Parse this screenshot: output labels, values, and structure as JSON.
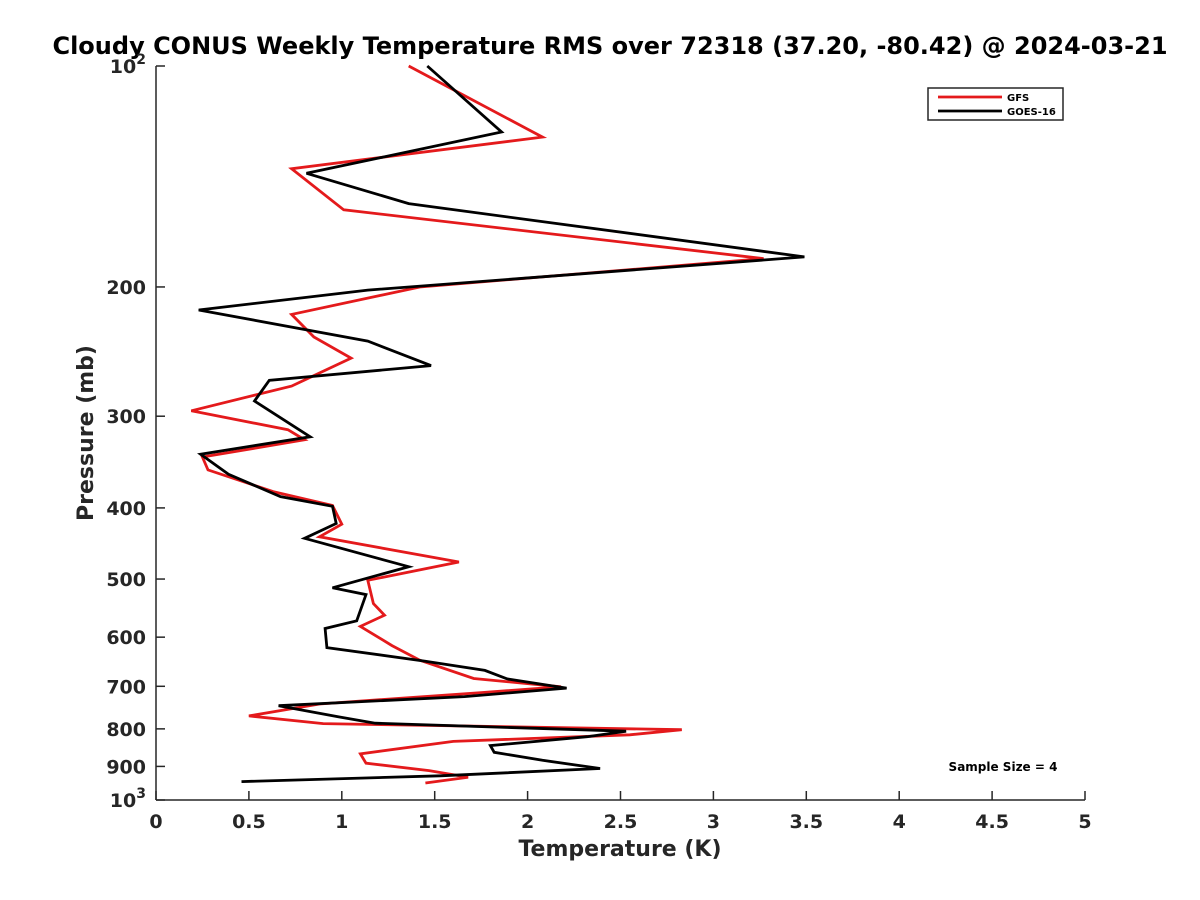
{
  "chart_data": {
    "type": "line",
    "title": "Cloudy CONUS Weekly Temperature RMS over 72318 (37.20, -80.42) @ 2024-03-21",
    "xlabel": "Temperature (K)",
    "ylabel": "Pressure (mb)",
    "xlim": [
      0,
      5
    ],
    "ylim": [
      100,
      1000
    ],
    "yscale": "log",
    "y_reversed": true,
    "x_ticks": [
      "0",
      "0.5",
      "1",
      "1.5",
      "2",
      "2.5",
      "3",
      "3.5",
      "4",
      "4.5",
      "5"
    ],
    "y_ticks": [
      {
        "value": 100,
        "label": "10",
        "exp": "2"
      },
      {
        "value": 200,
        "label": "200",
        "exp": ""
      },
      {
        "value": 300,
        "label": "300",
        "exp": ""
      },
      {
        "value": 400,
        "label": "400",
        "exp": ""
      },
      {
        "value": 500,
        "label": "500",
        "exp": ""
      },
      {
        "value": 600,
        "label": "600",
        "exp": ""
      },
      {
        "value": 700,
        "label": "700",
        "exp": ""
      },
      {
        "value": 800,
        "label": "800",
        "exp": ""
      },
      {
        "value": 900,
        "label": "900",
        "exp": ""
      },
      {
        "value": 1000,
        "label": "10",
        "exp": "3"
      }
    ],
    "grid": false,
    "legend_position": "top-right",
    "annotation": "Sample Size = 4",
    "series": [
      {
        "name": "GFS",
        "color": "#e41a1c",
        "points": [
          [
            1.36,
            100
          ],
          [
            2.08,
            125
          ],
          [
            0.73,
            138
          ],
          [
            1.01,
            157
          ],
          [
            3.27,
            183
          ],
          [
            1.42,
            200
          ],
          [
            0.73,
            218
          ],
          [
            0.85,
            234
          ],
          [
            1.05,
            250
          ],
          [
            0.73,
            273
          ],
          [
            0.19,
            295
          ],
          [
            0.71,
            313
          ],
          [
            0.8,
            323
          ],
          [
            0.25,
            341
          ],
          [
            0.28,
            355
          ],
          [
            0.63,
            380
          ],
          [
            0.95,
            397
          ],
          [
            1.0,
            421
          ],
          [
            0.88,
            438
          ],
          [
            1.63,
            474
          ],
          [
            1.14,
            502
          ],
          [
            1.17,
            540
          ],
          [
            1.23,
            560
          ],
          [
            1.1,
            580
          ],
          [
            1.27,
            616
          ],
          [
            1.42,
            645
          ],
          [
            1.71,
            683
          ],
          [
            2.18,
            701
          ],
          [
            1.75,
            714
          ],
          [
            0.88,
            740
          ],
          [
            0.5,
            768
          ],
          [
            0.9,
            787
          ],
          [
            2.83,
            802
          ],
          [
            2.55,
            815
          ],
          [
            1.6,
            832
          ],
          [
            1.1,
            865
          ],
          [
            1.13,
            891
          ],
          [
            1.47,
            912
          ],
          [
            1.68,
            931
          ],
          [
            1.45,
            948
          ]
        ]
      },
      {
        "name": "GOES-16",
        "color": "#000000",
        "points": [
          [
            1.46,
            100
          ],
          [
            1.86,
            123
          ],
          [
            0.81,
            140
          ],
          [
            1.36,
            154
          ],
          [
            3.49,
            182
          ],
          [
            1.14,
            202
          ],
          [
            0.23,
            215
          ],
          [
            1.14,
            237
          ],
          [
            1.48,
            256
          ],
          [
            0.61,
            268
          ],
          [
            0.53,
            286
          ],
          [
            0.83,
            320
          ],
          [
            0.24,
            338
          ],
          [
            0.39,
            360
          ],
          [
            0.67,
            386
          ],
          [
            0.95,
            398
          ],
          [
            0.97,
            420
          ],
          [
            0.8,
            440
          ],
          [
            1.36,
            481
          ],
          [
            0.95,
            514
          ],
          [
            1.13,
            525
          ],
          [
            1.08,
            570
          ],
          [
            0.91,
            584
          ],
          [
            0.92,
            620
          ],
          [
            1.45,
            647
          ],
          [
            1.77,
            666
          ],
          [
            1.89,
            684
          ],
          [
            2.21,
            704
          ],
          [
            1.66,
            723
          ],
          [
            0.66,
            744
          ],
          [
            0.98,
            770
          ],
          [
            1.18,
            786
          ],
          [
            2.53,
            806
          ],
          [
            2.32,
            820
          ],
          [
            1.8,
            843
          ],
          [
            1.82,
            861
          ],
          [
            2.08,
            883
          ],
          [
            2.39,
            906
          ],
          [
            1.53,
            927
          ],
          [
            0.46,
            944
          ]
        ]
      }
    ]
  }
}
